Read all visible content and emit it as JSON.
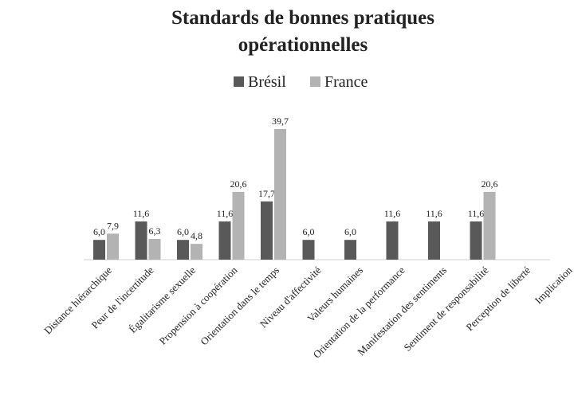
{
  "chart_data": {
    "type": "bar",
    "title": "Standards de bonnes pratiques opérationnelles",
    "categories": [
      "Distance hiérarchique",
      "Peur de l'incertitude",
      "Égalitarisme sexuelle",
      "Propension à coopération",
      "Orientation dans le temps",
      "Niveau d'affectivité",
      "Valeurs humaines",
      "Orientation de la performance",
      "Manifestation des sentiments",
      "Sentiment de responsabilité",
      "Perception de liberté",
      "Implication"
    ],
    "series": [
      {
        "name": "Brésil",
        "color": "#595959",
        "values": [
          6.0,
          11.6,
          6.0,
          11.6,
          17.7,
          6.0,
          6.0,
          11.6,
          11.6,
          11.6,
          null,
          null
        ],
        "value_labels": [
          "6,0",
          "11,6",
          "6,0",
          "11,6",
          "17,7",
          "6,0",
          "6,0",
          "11,6",
          "11,6",
          "11,6",
          null,
          null
        ]
      },
      {
        "name": "France",
        "color": "#b3b3b3",
        "values": [
          7.9,
          6.3,
          4.8,
          20.6,
          39.7,
          null,
          null,
          null,
          null,
          20.6,
          null,
          null
        ],
        "value_labels": [
          "7,9",
          "6,3",
          "4,8",
          "20,6",
          "39,7",
          null,
          null,
          null,
          null,
          "20,6",
          null,
          null
        ]
      }
    ],
    "legend": "top"
  }
}
